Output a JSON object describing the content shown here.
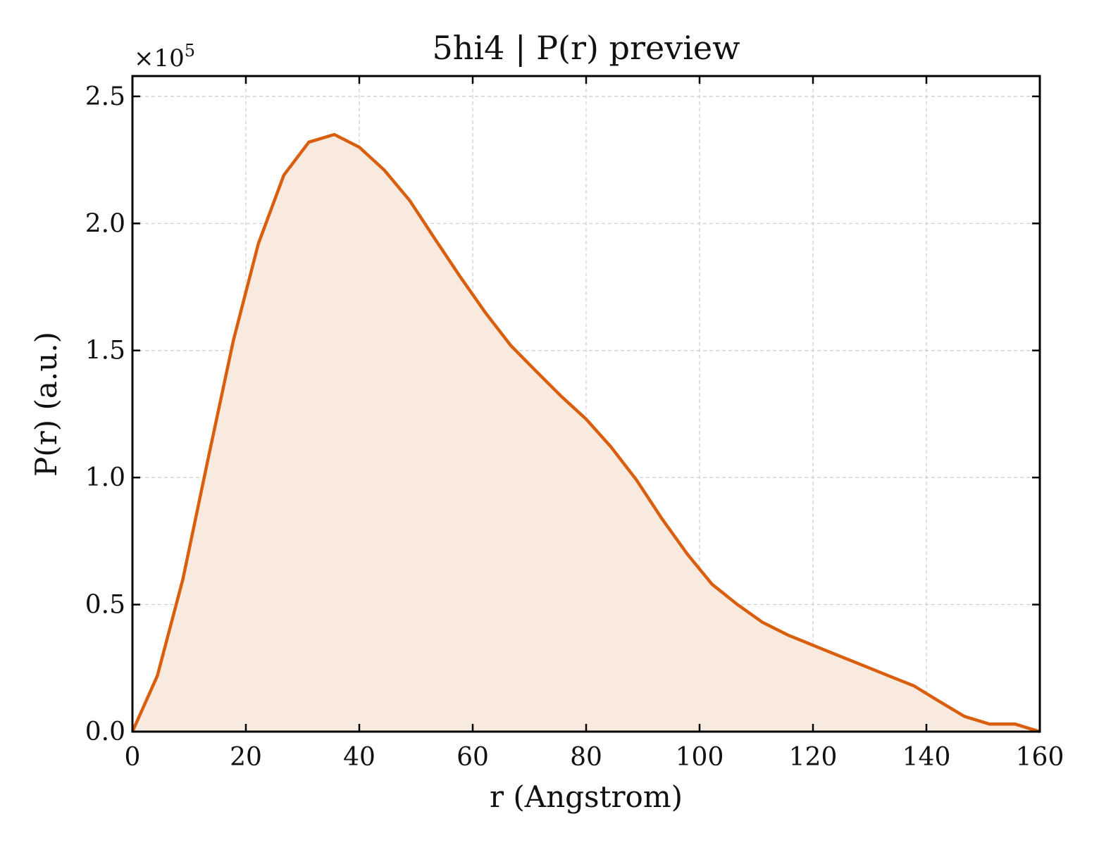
{
  "chart_data": {
    "type": "area",
    "title": "5hi4 | P(r) preview",
    "xlabel": "r (Angstrom)",
    "ylabel": "P(r) (a.u.)",
    "y_offset_text": {
      "base": "×10",
      "exponent": "5"
    },
    "xlim": [
      0,
      160
    ],
    "ylim": [
      0,
      2.58
    ],
    "y_unit_multiplier": 100000,
    "xticks": [
      0,
      20,
      40,
      60,
      80,
      100,
      120,
      140,
      160
    ],
    "xtick_labels": [
      "0",
      "20",
      "40",
      "60",
      "80",
      "100",
      "120",
      "140",
      "160"
    ],
    "yticks": [
      0,
      0.5,
      1.0,
      1.5,
      2.0,
      2.5
    ],
    "ytick_labels": [
      "0.0",
      "0.5",
      "1.0",
      "1.5",
      "2.0",
      "2.5"
    ],
    "grid": true,
    "series": [
      {
        "line_color": "#d95f0e",
        "fill_color": "#f9eadf",
        "x": [
          0,
          4.4,
          8.9,
          13.3,
          17.8,
          22.2,
          26.7,
          31.1,
          35.6,
          40.0,
          44.4,
          48.9,
          53.3,
          57.8,
          62.2,
          66.7,
          71.1,
          75.6,
          80.0,
          84.4,
          88.9,
          93.3,
          97.8,
          102.2,
          106.7,
          111.1,
          115.6,
          120.0,
          124.4,
          128.9,
          133.3,
          137.8,
          142.2,
          146.7,
          151.1,
          155.6,
          160.0
        ],
        "y": [
          0.0,
          0.22,
          0.6,
          1.07,
          1.54,
          1.92,
          2.19,
          2.32,
          2.35,
          2.3,
          2.21,
          2.09,
          1.94,
          1.79,
          1.65,
          1.52,
          1.42,
          1.32,
          1.23,
          1.12,
          0.99,
          0.84,
          0.7,
          0.58,
          0.5,
          0.43,
          0.38,
          0.34,
          0.3,
          0.26,
          0.22,
          0.18,
          0.12,
          0.06,
          0.03,
          0.03,
          0.0
        ]
      }
    ]
  }
}
